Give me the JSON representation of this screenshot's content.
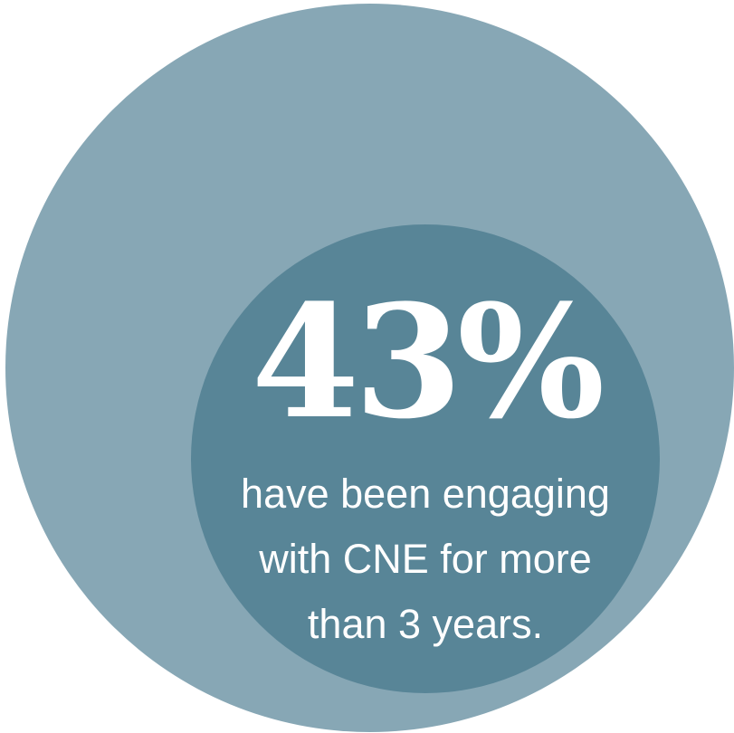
{
  "stat": {
    "value": "43%",
    "caption_lines": [
      "have been engaging",
      "with CNE for more",
      "than 3 years."
    ]
  },
  "colors": {
    "outer_circle": "#87a7b5",
    "inner_circle": "#588597",
    "text": "#ffffff",
    "background": "#ffffff"
  }
}
